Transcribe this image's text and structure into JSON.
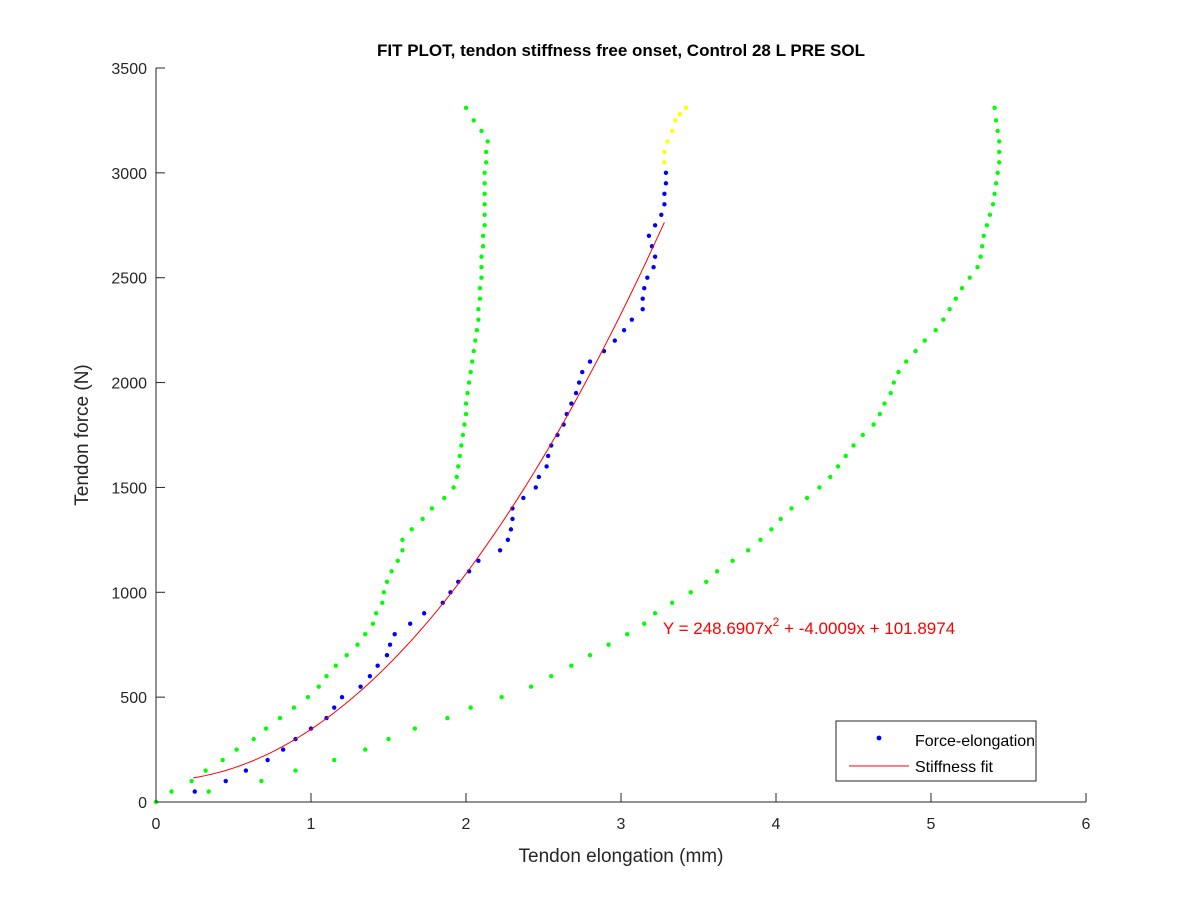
{
  "chart_data": {
    "type": "scatter",
    "title": "FIT PLOT, tendon stiffness free onset, Control 28 L PRE SOL",
    "xlabel": "Tendon elongation (mm)",
    "ylabel": "Tendon force (N)",
    "xlim": [
      0,
      6
    ],
    "ylim": [
      0,
      3500
    ],
    "xticks": [
      0,
      1,
      2,
      3,
      4,
      5,
      6
    ],
    "yticks": [
      0,
      500,
      1000,
      1500,
      2000,
      2500,
      3000,
      3500
    ],
    "xtick_labels": [
      "0",
      "1",
      "2",
      "3",
      "4",
      "5",
      "6"
    ],
    "ytick_labels": [
      "0",
      "500",
      "1000",
      "1500",
      "2000",
      "2500",
      "3000",
      "3500"
    ],
    "grid": false,
    "legend_position": "bottom-right",
    "colors": {
      "blue": "#0000ff",
      "green": "#00ff00",
      "yellow": "#ffff00",
      "red": "#ff0000",
      "axis": "#262626"
    },
    "legend": [
      {
        "label": "Force-elongation",
        "marker": "dot",
        "color": "#0000ff"
      },
      {
        "label": "Stiffness fit",
        "marker": "line",
        "color": "#ff0000"
      }
    ],
    "annotation": {
      "text_main": "Y = 248.6907x",
      "text_sup": "2",
      "text_tail": " + -4.0009x + 101.8974",
      "color": "#ff0000",
      "anchor_x": 3.27,
      "anchor_y": 800
    },
    "fit": {
      "name": "Stiffness fit",
      "a": 248.6907,
      "b": -4.0009,
      "c": 101.8974,
      "x_range": [
        0.24,
        3.28
      ],
      "color": "#ff0000"
    },
    "series": [
      {
        "name": "Force-elongation",
        "color": "#0000ff",
        "points": [
          [
            0.25,
            50
          ],
          [
            0.45,
            100
          ],
          [
            0.58,
            150
          ],
          [
            0.72,
            200
          ],
          [
            0.82,
            250
          ],
          [
            0.9,
            300
          ],
          [
            1.0,
            350
          ],
          [
            1.1,
            400
          ],
          [
            1.15,
            450
          ],
          [
            1.2,
            500
          ],
          [
            1.32,
            550
          ],
          [
            1.38,
            600
          ],
          [
            1.43,
            650
          ],
          [
            1.49,
            700
          ],
          [
            1.51,
            750
          ],
          [
            1.54,
            800
          ],
          [
            1.64,
            850
          ],
          [
            1.73,
            900
          ],
          [
            1.85,
            950
          ],
          [
            1.9,
            1000
          ],
          [
            1.95,
            1050
          ],
          [
            2.02,
            1100
          ],
          [
            2.08,
            1150
          ],
          [
            2.22,
            1200
          ],
          [
            2.27,
            1250
          ],
          [
            2.29,
            1300
          ],
          [
            2.3,
            1350
          ],
          [
            2.3,
            1400
          ],
          [
            2.37,
            1450
          ],
          [
            2.45,
            1500
          ],
          [
            2.47,
            1550
          ],
          [
            2.52,
            1600
          ],
          [
            2.53,
            1650
          ],
          [
            2.55,
            1700
          ],
          [
            2.59,
            1750
          ],
          [
            2.63,
            1800
          ],
          [
            2.65,
            1850
          ],
          [
            2.68,
            1900
          ],
          [
            2.71,
            1950
          ],
          [
            2.73,
            2000
          ],
          [
            2.75,
            2050
          ],
          [
            2.8,
            2100
          ],
          [
            2.89,
            2150
          ],
          [
            2.96,
            2200
          ],
          [
            3.02,
            2250
          ],
          [
            3.07,
            2300
          ],
          [
            3.14,
            2350
          ],
          [
            3.14,
            2400
          ],
          [
            3.15,
            2450
          ],
          [
            3.17,
            2500
          ],
          [
            3.21,
            2550
          ],
          [
            3.22,
            2600
          ],
          [
            3.2,
            2650
          ],
          [
            3.18,
            2700
          ],
          [
            3.22,
            2750
          ],
          [
            3.26,
            2800
          ],
          [
            3.28,
            2850
          ],
          [
            3.28,
            2900
          ],
          [
            3.29,
            2950
          ],
          [
            3.29,
            3000
          ]
        ]
      },
      {
        "name": "",
        "color": "#ffff00",
        "points": [
          [
            3.28,
            3050
          ],
          [
            3.28,
            3100
          ],
          [
            3.3,
            3150
          ],
          [
            3.33,
            3200
          ],
          [
            3.35,
            3250
          ],
          [
            3.38,
            3280
          ],
          [
            3.42,
            3310
          ]
        ]
      },
      {
        "name": "",
        "color": "#00ff00",
        "points": [
          [
            0.0,
            0
          ],
          [
            0.1,
            50
          ],
          [
            0.23,
            100
          ],
          [
            0.32,
            150
          ],
          [
            0.43,
            200
          ],
          [
            0.52,
            250
          ],
          [
            0.63,
            300
          ],
          [
            0.71,
            350
          ],
          [
            0.8,
            400
          ],
          [
            0.89,
            450
          ],
          [
            0.98,
            500
          ],
          [
            1.05,
            550
          ],
          [
            1.1,
            600
          ],
          [
            1.16,
            650
          ],
          [
            1.23,
            700
          ],
          [
            1.3,
            750
          ],
          [
            1.35,
            800
          ],
          [
            1.4,
            850
          ],
          [
            1.42,
            900
          ],
          [
            1.46,
            950
          ],
          [
            1.47,
            1000
          ],
          [
            1.49,
            1050
          ],
          [
            1.52,
            1100
          ],
          [
            1.56,
            1150
          ],
          [
            1.59,
            1200
          ],
          [
            1.59,
            1250
          ],
          [
            1.65,
            1300
          ],
          [
            1.72,
            1350
          ],
          [
            1.78,
            1400
          ],
          [
            1.86,
            1450
          ],
          [
            1.92,
            1500
          ],
          [
            1.94,
            1550
          ],
          [
            1.95,
            1600
          ],
          [
            1.96,
            1650
          ],
          [
            1.97,
            1700
          ],
          [
            1.98,
            1750
          ],
          [
            1.99,
            1800
          ],
          [
            2.0,
            1850
          ],
          [
            2.0,
            1900
          ],
          [
            2.01,
            1950
          ],
          [
            2.02,
            2000
          ],
          [
            2.03,
            2050
          ],
          [
            2.04,
            2100
          ],
          [
            2.05,
            2150
          ],
          [
            2.06,
            2200
          ],
          [
            2.07,
            2250
          ],
          [
            2.08,
            2300
          ],
          [
            2.08,
            2350
          ],
          [
            2.09,
            2400
          ],
          [
            2.09,
            2450
          ],
          [
            2.1,
            2500
          ],
          [
            2.1,
            2550
          ],
          [
            2.1,
            2600
          ],
          [
            2.11,
            2650
          ],
          [
            2.11,
            2700
          ],
          [
            2.12,
            2750
          ],
          [
            2.12,
            2800
          ],
          [
            2.12,
            2850
          ],
          [
            2.12,
            2900
          ],
          [
            2.12,
            2950
          ],
          [
            2.12,
            3000
          ],
          [
            2.13,
            3050
          ],
          [
            2.13,
            3100
          ],
          [
            2.14,
            3150
          ],
          [
            2.1,
            3200
          ],
          [
            2.05,
            3250
          ],
          [
            2.0,
            3310
          ]
        ]
      },
      {
        "name": "",
        "color": "#00ff00",
        "points": [
          [
            0.34,
            50
          ],
          [
            0.68,
            100
          ],
          [
            0.9,
            150
          ],
          [
            1.15,
            200
          ],
          [
            1.35,
            250
          ],
          [
            1.5,
            300
          ],
          [
            1.67,
            350
          ],
          [
            1.88,
            400
          ],
          [
            2.03,
            450
          ],
          [
            2.23,
            500
          ],
          [
            2.42,
            550
          ],
          [
            2.55,
            600
          ],
          [
            2.68,
            650
          ],
          [
            2.8,
            700
          ],
          [
            2.92,
            750
          ],
          [
            3.04,
            800
          ],
          [
            3.15,
            850
          ],
          [
            3.22,
            900
          ],
          [
            3.33,
            950
          ],
          [
            3.45,
            1000
          ],
          [
            3.55,
            1050
          ],
          [
            3.62,
            1100
          ],
          [
            3.72,
            1150
          ],
          [
            3.82,
            1200
          ],
          [
            3.9,
            1250
          ],
          [
            3.97,
            1300
          ],
          [
            4.03,
            1350
          ],
          [
            4.1,
            1400
          ],
          [
            4.2,
            1450
          ],
          [
            4.28,
            1500
          ],
          [
            4.35,
            1550
          ],
          [
            4.4,
            1600
          ],
          [
            4.45,
            1650
          ],
          [
            4.5,
            1700
          ],
          [
            4.56,
            1750
          ],
          [
            4.63,
            1800
          ],
          [
            4.67,
            1850
          ],
          [
            4.7,
            1900
          ],
          [
            4.74,
            1950
          ],
          [
            4.76,
            2000
          ],
          [
            4.79,
            2050
          ],
          [
            4.84,
            2100
          ],
          [
            4.9,
            2150
          ],
          [
            4.96,
            2200
          ],
          [
            5.03,
            2250
          ],
          [
            5.08,
            2300
          ],
          [
            5.12,
            2350
          ],
          [
            5.16,
            2400
          ],
          [
            5.2,
            2450
          ],
          [
            5.25,
            2500
          ],
          [
            5.3,
            2550
          ],
          [
            5.32,
            2600
          ],
          [
            5.33,
            2650
          ],
          [
            5.34,
            2700
          ],
          [
            5.36,
            2750
          ],
          [
            5.38,
            2800
          ],
          [
            5.4,
            2850
          ],
          [
            5.41,
            2900
          ],
          [
            5.42,
            2950
          ],
          [
            5.43,
            3000
          ],
          [
            5.44,
            3050
          ],
          [
            5.44,
            3100
          ],
          [
            5.44,
            3150
          ],
          [
            5.43,
            3200
          ],
          [
            5.42,
            3250
          ],
          [
            5.41,
            3310
          ]
        ]
      }
    ]
  }
}
